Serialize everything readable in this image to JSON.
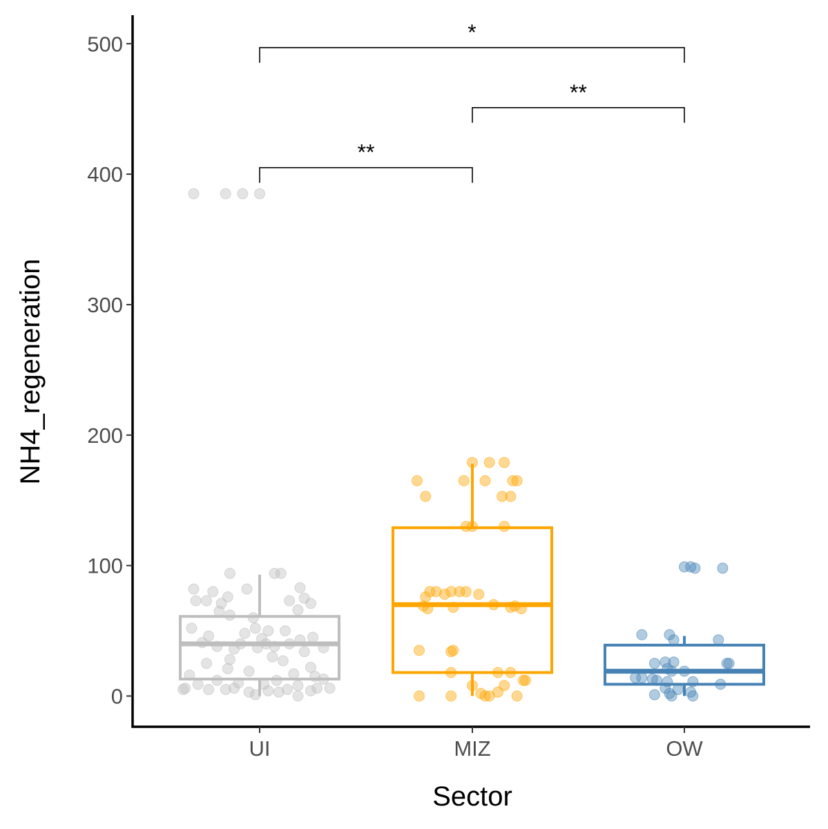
{
  "chart_data": {
    "type": "box",
    "xlabel": "Sector",
    "ylabel": "NH4_regeneration",
    "ylim": [
      -25,
      520
    ],
    "yticks": [
      0,
      100,
      200,
      300,
      400,
      500
    ],
    "grid": false,
    "categories": [
      "UI",
      "MIZ",
      "OW"
    ],
    "colors": {
      "UI": "#bebebe",
      "MIZ": "#ffa500",
      "OW": "#4682b4"
    },
    "boxes": [
      {
        "category": "UI",
        "min": 0,
        "q1": 13,
        "median": 40,
        "q3": 61,
        "max": 93
      },
      {
        "category": "MIZ",
        "min": 0,
        "q1": 18,
        "median": 70,
        "q3": 129,
        "max": 178
      },
      {
        "category": "OW",
        "min": 0,
        "q1": 9,
        "median": 19,
        "q3": 39,
        "max": 46
      }
    ],
    "points": {
      "UI": [
        [
          -0.31,
          385
        ],
        [
          -0.16,
          385
        ],
        [
          -0.08,
          385
        ],
        [
          0,
          385
        ],
        [
          -0.14,
          94
        ],
        [
          0.07,
          94
        ],
        [
          0.1,
          94
        ],
        [
          -0.06,
          82
        ],
        [
          0.19,
          83
        ],
        [
          -0.31,
          82
        ],
        [
          -0.22,
          80
        ],
        [
          -0.15,
          76
        ],
        [
          -0.18,
          71
        ],
        [
          -0.25,
          73
        ],
        [
          -0.3,
          73
        ],
        [
          0.21,
          75
        ],
        [
          0.24,
          71
        ],
        [
          0.14,
          73
        ],
        [
          -0.03,
          60
        ],
        [
          0.18,
          66
        ],
        [
          -0.19,
          65
        ],
        [
          -0.14,
          62
        ],
        [
          -0.02,
          52
        ],
        [
          0.12,
          50
        ],
        [
          0.04,
          50
        ],
        [
          -0.07,
          48
        ],
        [
          0.25,
          45
        ],
        [
          0.01,
          44
        ],
        [
          -0.09,
          40
        ],
        [
          0.14,
          40
        ],
        [
          0.19,
          43
        ],
        [
          -0.01,
          37
        ],
        [
          0.03,
          40
        ],
        [
          0.07,
          38
        ],
        [
          -0.27,
          41
        ],
        [
          -0.2,
          38
        ],
        [
          -0.12,
          36
        ],
        [
          -0.32,
          52
        ],
        [
          -0.24,
          46
        ],
        [
          0.21,
          34
        ],
        [
          0.3,
          37
        ],
        [
          0.06,
          30
        ],
        [
          -0.14,
          28
        ],
        [
          0.11,
          27
        ],
        [
          -0.25,
          25
        ],
        [
          0.24,
          22
        ],
        [
          -0.15,
          21
        ],
        [
          -0.05,
          19
        ],
        [
          0.16,
          17
        ],
        [
          -0.33,
          16
        ],
        [
          0.26,
          15
        ],
        [
          0.3,
          13
        ],
        [
          -0.2,
          12
        ],
        [
          0.08,
          12
        ],
        [
          -0.1,
          10
        ],
        [
          0.02,
          9
        ],
        [
          -0.29,
          9
        ],
        [
          0.18,
          8
        ],
        [
          0.27,
          6
        ],
        [
          -0.35,
          6
        ],
        [
          -0.24,
          5
        ],
        [
          0.13,
          5
        ],
        [
          -0.16,
          5
        ],
        [
          0.04,
          4
        ],
        [
          0.24,
          4
        ],
        [
          -0.05,
          3
        ],
        [
          0.09,
          3
        ],
        [
          -0.02,
          1
        ],
        [
          0.18,
          0
        ],
        [
          -0.36,
          5
        ],
        [
          -0.12,
          6
        ],
        [
          0.33,
          6
        ]
      ],
      "MIZ": [
        [
          0.0,
          179
        ],
        [
          0.08,
          179
        ],
        [
          0.15,
          179
        ],
        [
          -0.26,
          165
        ],
        [
          -0.04,
          165
        ],
        [
          0.06,
          165
        ],
        [
          0.19,
          165
        ],
        [
          0.21,
          165
        ],
        [
          -0.22,
          153
        ],
        [
          0.14,
          153
        ],
        [
          0.18,
          153
        ],
        [
          -0.03,
          130
        ],
        [
          0.0,
          130
        ],
        [
          0.15,
          130
        ],
        [
          -0.2,
          80
        ],
        [
          -0.17,
          80
        ],
        [
          -0.1,
          80
        ],
        [
          -0.06,
          80
        ],
        [
          -0.03,
          80
        ],
        [
          -0.13,
          78
        ],
        [
          0.03,
          78
        ],
        [
          -0.22,
          76
        ],
        [
          -0.23,
          69
        ],
        [
          0.1,
          70
        ],
        [
          0.18,
          68
        ],
        [
          0.2,
          69
        ],
        [
          0.23,
          67
        ],
        [
          -0.21,
          67
        ],
        [
          -0.09,
          68
        ],
        [
          -0.25,
          35
        ],
        [
          -0.1,
          34
        ],
        [
          -0.09,
          35
        ],
        [
          -0.1,
          18
        ],
        [
          0.12,
          18
        ],
        [
          0.18,
          18
        ],
        [
          0.24,
          12
        ],
        [
          0.25,
          12
        ],
        [
          0.0,
          8
        ],
        [
          0.15,
          8
        ],
        [
          -0.1,
          0
        ],
        [
          -0.25,
          0
        ],
        [
          0.06,
          0
        ],
        [
          0.08,
          0
        ],
        [
          0.12,
          3
        ],
        [
          0.21,
          0
        ],
        [
          0.04,
          2
        ]
      ],
      "OW": [
        [
          0.0,
          99
        ],
        [
          0.03,
          99
        ],
        [
          0.05,
          98
        ],
        [
          0.18,
          98
        ],
        [
          -0.2,
          47
        ],
        [
          -0.07,
          47
        ],
        [
          -0.05,
          43
        ],
        [
          0.16,
          43
        ],
        [
          -0.14,
          25
        ],
        [
          -0.09,
          26
        ],
        [
          -0.05,
          26
        ],
        [
          0.2,
          25
        ],
        [
          0.21,
          25
        ],
        [
          -0.08,
          21
        ],
        [
          0.0,
          19
        ],
        [
          -0.06,
          19
        ],
        [
          -0.23,
          14
        ],
        [
          -0.15,
          13
        ],
        [
          -0.13,
          12
        ],
        [
          -0.08,
          11
        ],
        [
          0.04,
          11
        ],
        [
          0.17,
          9
        ],
        [
          -0.2,
          14
        ],
        [
          -0.09,
          6
        ],
        [
          -0.03,
          5
        ],
        [
          0.03,
          3
        ],
        [
          -0.14,
          1
        ],
        [
          -0.06,
          0
        ],
        [
          0.04,
          0
        ],
        [
          -0.07,
          2
        ]
      ]
    },
    "comparisons": [
      {
        "from": "UI",
        "to": "MIZ",
        "y": 405,
        "label": "**"
      },
      {
        "from": "MIZ",
        "to": "OW",
        "y": 451,
        "label": "**"
      },
      {
        "from": "UI",
        "to": "OW",
        "y": 497,
        "label": "*"
      }
    ]
  }
}
